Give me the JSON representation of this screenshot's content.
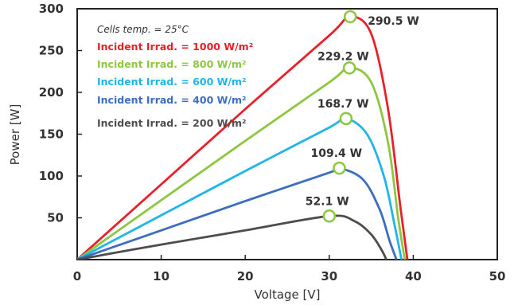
{
  "chart_data": {
    "type": "line",
    "xlabel": "Voltage [V]",
    "ylabel": "Power [W]",
    "xlim": [
      0,
      50
    ],
    "ylim": [
      0,
      300
    ],
    "xticks": [
      "0",
      "10",
      "20",
      "30",
      "40",
      "50"
    ],
    "yticks": [
      "50",
      "100",
      "150",
      "200",
      "250",
      "300"
    ],
    "grid": false,
    "annotation": "Cells temp. = 25°C",
    "legend_position": "top-left",
    "series": [
      {
        "name": "Incident Irrad. = 1000 W/m²",
        "color": "#e8202a",
        "x": [
          0,
          10,
          20,
          30,
          32.5,
          35,
          37,
          38.5,
          39.3
        ],
        "y": [
          0,
          90,
          180,
          268,
          290.5,
          270,
          180,
          60,
          0
        ],
        "peak": {
          "x": 32.5,
          "y": 290.5,
          "label": "290.5 W"
        }
      },
      {
        "name": "Incident Irrad. = 800 W/m²",
        "color": "#8dc63f",
        "x": [
          0,
          10,
          20,
          30,
          32.4,
          35,
          37,
          38.2,
          39.0
        ],
        "y": [
          0,
          71,
          142,
          212,
          229.2,
          212,
          140,
          50,
          0
        ],
        "peak": {
          "x": 32.4,
          "y": 229.2,
          "label": "229.2 W"
        }
      },
      {
        "name": "Incident Irrad. = 600 W/m²",
        "color": "#1fb5ea",
        "x": [
          0,
          10,
          20,
          30,
          32.0,
          34.5,
          36.5,
          37.8,
          38.6
        ],
        "y": [
          0,
          53,
          106,
          158,
          168.7,
          150,
          100,
          40,
          0
        ],
        "peak": {
          "x": 32.0,
          "y": 168.7,
          "label": "168.7 W"
        }
      },
      {
        "name": "Incident Irrad. = 400 W/m²",
        "color": "#3c6dbf",
        "x": [
          0,
          10,
          20,
          30,
          31.2,
          34,
          36,
          37.2,
          38.0
        ],
        "y": [
          0,
          35,
          70,
          104,
          109.4,
          96,
          60,
          22,
          0
        ],
        "peak": {
          "x": 31.2,
          "y": 109.4,
          "label": "109.4 W"
        }
      },
      {
        "name": "Incident Irrad. = 200 W/m²",
        "color": "#4d4d4d",
        "x": [
          0,
          10,
          20,
          30,
          33,
          35,
          36.2,
          36.8
        ],
        "y": [
          0,
          18,
          35,
          52.1,
          46,
          30,
          12,
          0
        ],
        "peak": {
          "x": 30.0,
          "y": 52.1,
          "label": "52.1 W"
        }
      }
    ]
  }
}
